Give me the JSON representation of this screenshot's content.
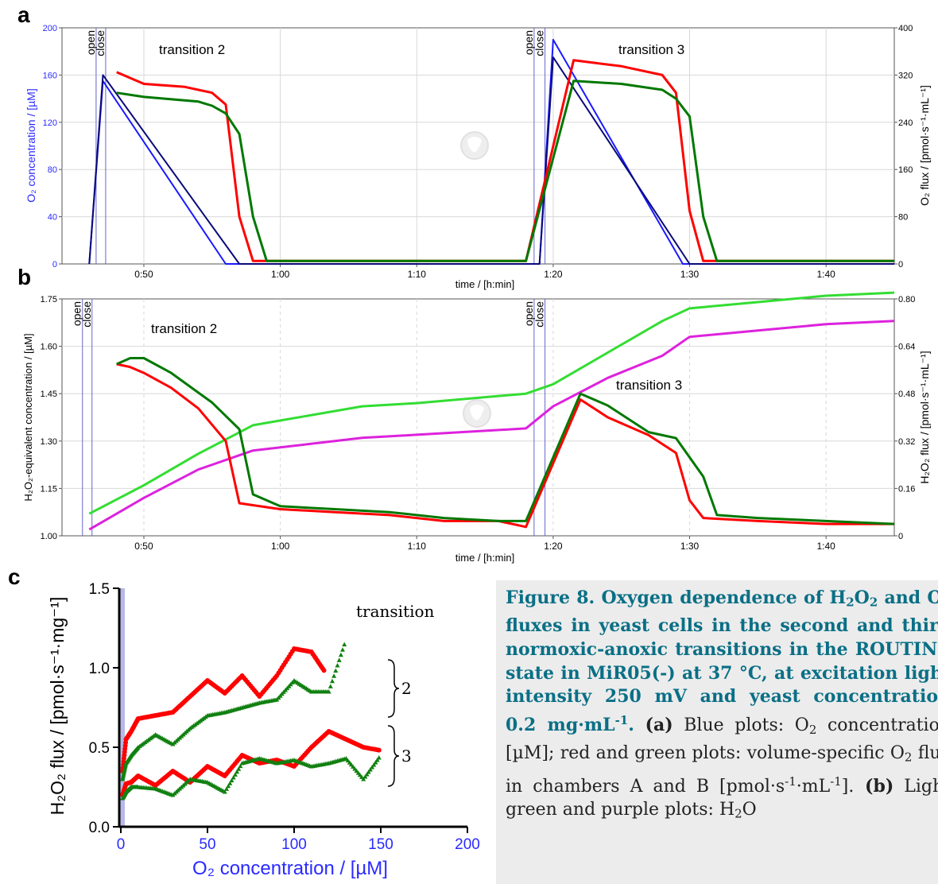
{
  "panels": {
    "a": {
      "letter": "a",
      "left_axis_label": "O₂ concentration / [µM]",
      "right_axis_label": "O₂ flux / [pmol·s⁻¹·mL⁻¹]",
      "x_label": "time / [h:min]",
      "x_ticks": [
        "0:50",
        "1:00",
        "1:10",
        "1:20",
        "1:30",
        "1:40"
      ],
      "left_ticks": [
        "0",
        "40",
        "80",
        "120",
        "160",
        "200"
      ],
      "right_ticks": [
        "0",
        "80",
        "160",
        "240",
        "320",
        "400"
      ],
      "events": [
        "open",
        "close",
        "open",
        "close"
      ],
      "annotations": [
        "transition 2",
        "transition 3"
      ],
      "colors": {
        "o2_conc_a": "#1a1aff",
        "o2_conc_b": "#0a0a7a",
        "flux_a": "#ff0000",
        "flux_b": "#007800"
      }
    },
    "b": {
      "letter": "b",
      "left_axis_label": "H₂O₂-equivalent concentration / [µM]",
      "right_axis_label": "H₂O₂ flux / [pmol·s⁻¹·mL⁻¹]",
      "x_label": "time / [h:min]",
      "x_ticks": [
        "0:50",
        "1:00",
        "1:10",
        "1:20",
        "1:30",
        "1:40"
      ],
      "left_ticks": [
        "1.00",
        "1.15",
        "1.30",
        "1.45",
        "1.60",
        "1.75"
      ],
      "right_ticks": [
        "0",
        "0.16",
        "0.32",
        "0.48",
        "0.64",
        "0.80"
      ],
      "events": [
        "open",
        "close",
        "open",
        "close"
      ],
      "annotations": [
        "transition 2",
        "transition 3"
      ],
      "colors": {
        "conc_a": "#33dd33",
        "conc_b": "#dd22dd",
        "flux_a": "#ff0000",
        "flux_b": "#007800"
      }
    },
    "c": {
      "letter": "c",
      "y_label": "H₂O₂ flux / [pmol·s⁻¹·mg⁻¹]",
      "x_label": "O₂ concentration / [µM]",
      "x_ticks": [
        "0",
        "50",
        "100",
        "150",
        "200"
      ],
      "y_ticks": [
        "0.0",
        "0.5",
        "1.0",
        "1.5"
      ],
      "legend_title": "transition",
      "brace_labels": [
        "2",
        "3"
      ],
      "colors": {
        "chamber_a": "#ff0000",
        "chamber_b": "#108010"
      }
    }
  },
  "chart_data": [
    {
      "type": "line",
      "panel": "a",
      "x_unit": "h:min",
      "xlim": [
        "0:44",
        "1:45"
      ],
      "ylim_left": [
        0,
        200
      ],
      "ylim_right": [
        0,
        400
      ],
      "series": [
        {
          "axis": "left",
          "x": [
            "0:46",
            "0:47",
            "0:56",
            "0:57",
            "1:18.5",
            "1:19",
            "1:20",
            "1:29.5",
            "1:31",
            "1:45"
          ],
          "values": [
            0,
            155,
            0,
            0,
            0,
            0,
            190,
            0,
            0,
            0
          ]
        },
        {
          "axis": "left",
          "x": [
            "0:46",
            "0:47",
            "0:57",
            "0:58",
            "1:18.5",
            "1:19",
            "1:20",
            "1:30",
            "1:31",
            "1:45"
          ],
          "values": [
            0,
            160,
            0,
            0,
            0,
            0,
            175,
            0,
            0,
            0
          ]
        },
        {
          "axis": "right",
          "x": [
            "0:48",
            "0:50",
            "0:53",
            "0:55",
            "0:56",
            "0:57",
            "0:58",
            "1:18",
            "1:21.5",
            "1:25",
            "1:28",
            "1:29",
            "1:30",
            "1:31",
            "1:45"
          ],
          "values": [
            325,
            305,
            300,
            290,
            270,
            80,
            5,
            5,
            345,
            335,
            320,
            290,
            90,
            5,
            5
          ]
        },
        {
          "axis": "right",
          "x": [
            "0:48",
            "0:50",
            "0:54",
            "0:55",
            "0:56",
            "0:57",
            "0:58",
            "0:59",
            "1:18",
            "1:21.5",
            "1:25",
            "1:28",
            "1:29",
            "1:30",
            "1:31",
            "1:32",
            "1:45"
          ],
          "values": [
            290,
            283,
            275,
            268,
            255,
            220,
            80,
            5,
            5,
            310,
            305,
            295,
            280,
            250,
            80,
            5,
            5
          ]
        }
      ]
    },
    {
      "type": "line",
      "panel": "b",
      "x_unit": "h:min",
      "xlim": [
        "0:44",
        "1:45"
      ],
      "ylim_left": [
        1.0,
        1.75
      ],
      "ylim_right": [
        0,
        0.8
      ],
      "series": [
        {
          "axis": "left",
          "x": [
            "0:46",
            "0:50",
            "0:54",
            "0:58",
            "1:02",
            "1:06",
            "1:10",
            "1:18",
            "1:20",
            "1:24",
            "1:28",
            "1:30",
            "1:35",
            "1:40",
            "1:45"
          ],
          "values": [
            1.07,
            1.16,
            1.26,
            1.35,
            1.38,
            1.41,
            1.42,
            1.45,
            1.48,
            1.58,
            1.68,
            1.72,
            1.74,
            1.76,
            1.77
          ]
        },
        {
          "axis": "left",
          "x": [
            "0:46",
            "0:50",
            "0:54",
            "0:58",
            "1:02",
            "1:06",
            "1:10",
            "1:18",
            "1:20",
            "1:24",
            "1:28",
            "1:30",
            "1:35",
            "1:40",
            "1:45"
          ],
          "values": [
            1.02,
            1.12,
            1.21,
            1.27,
            1.29,
            1.31,
            1.32,
            1.34,
            1.41,
            1.5,
            1.57,
            1.63,
            1.65,
            1.67,
            1.68
          ]
        },
        {
          "axis": "right",
          "x": [
            "0:48",
            "0:49",
            "0:50",
            "0:52",
            "0:54",
            "0:56",
            "0:57",
            "1:00",
            "1:04",
            "1:08",
            "1:12",
            "1:16",
            "1:18",
            "1:22",
            "1:24",
            "1:27",
            "1:29",
            "1:30",
            "1:31",
            "1:35",
            "1:40",
            "1:45"
          ],
          "values": [
            0.58,
            0.57,
            0.55,
            0.5,
            0.43,
            0.32,
            0.11,
            0.09,
            0.08,
            0.07,
            0.05,
            0.05,
            0.03,
            0.46,
            0.4,
            0.34,
            0.28,
            0.12,
            0.06,
            0.05,
            0.04,
            0.04
          ]
        },
        {
          "axis": "right",
          "x": [
            "0:48",
            "0:49",
            "0:50",
            "0:52",
            "0:55",
            "0:57",
            "0:58",
            "1:00",
            "1:04",
            "1:08",
            "1:12",
            "1:16",
            "1:18",
            "1:22",
            "1:24",
            "1:27",
            "1:29",
            "1:31",
            "1:32",
            "1:35",
            "1:40",
            "1:45"
          ],
          "values": [
            0.58,
            0.6,
            0.6,
            0.55,
            0.45,
            0.36,
            0.14,
            0.1,
            0.09,
            0.08,
            0.06,
            0.05,
            0.05,
            0.48,
            0.44,
            0.35,
            0.33,
            0.2,
            0.07,
            0.06,
            0.05,
            0.04
          ]
        }
      ]
    },
    {
      "type": "scatter",
      "panel": "c",
      "xlim": [
        0,
        200
      ],
      "ylim": [
        0,
        1.5
      ],
      "series": [
        {
          "x": [
            1,
            3,
            6,
            10,
            20,
            30,
            40,
            50,
            60,
            70,
            80,
            90,
            100,
            110,
            118
          ],
          "values": [
            0.35,
            0.55,
            0.6,
            0.68,
            0.7,
            0.72,
            0.82,
            0.92,
            0.84,
            0.95,
            0.82,
            0.95,
            1.12,
            1.1,
            0.97
          ]
        },
        {
          "x": [
            1,
            3,
            6,
            10,
            20,
            30,
            40,
            50,
            60,
            70,
            80,
            90,
            100,
            110,
            120,
            130
          ],
          "values": [
            0.3,
            0.4,
            0.45,
            0.5,
            0.58,
            0.52,
            0.62,
            0.7,
            0.72,
            0.75,
            0.78,
            0.8,
            0.92,
            0.85,
            0.85,
            1.18
          ]
        },
        {
          "x": [
            1,
            3,
            6,
            10,
            20,
            30,
            40,
            50,
            60,
            70,
            80,
            90,
            100,
            110,
            120,
            130,
            140,
            150
          ],
          "values": [
            0.2,
            0.27,
            0.28,
            0.32,
            0.26,
            0.35,
            0.28,
            0.38,
            0.32,
            0.45,
            0.4,
            0.42,
            0.38,
            0.5,
            0.6,
            0.55,
            0.5,
            0.48
          ]
        },
        {
          "x": [
            1,
            3,
            6,
            10,
            20,
            30,
            40,
            50,
            60,
            70,
            80,
            90,
            100,
            110,
            120,
            130,
            140,
            150
          ],
          "values": [
            0.18,
            0.22,
            0.25,
            0.25,
            0.24,
            0.2,
            0.3,
            0.28,
            0.22,
            0.4,
            0.43,
            0.4,
            0.42,
            0.38,
            0.4,
            0.43,
            0.3,
            0.45
          ]
        }
      ]
    }
  ],
  "caption": {
    "title_1": "Figure 8. Oxygen dependence of H",
    "title_h2o2_sub": "2",
    "title_2": "O",
    "title_o_sub": "2",
    "title_3": " and O",
    "title_o2_sub": "2",
    "title_4": " fluxes in yeast cells in the second and third normoxic-anoxic transitions in the ROUTINE state in MiR05(-) at 37 °C, at excitation light intensity 250 mV and yeast concentration 0.2 mg·mL",
    "title_sup": "-1",
    "title_end": ".",
    "part_a_label": "(a)",
    "part_a_1": " Blue plots: O",
    "part_a_sub1": "2",
    "part_a_2": " concentration [µM]; red and green plots: volume-specific O",
    "part_a_sub2": "2",
    "part_a_3": " flux in chambers A and B [pmol·s",
    "part_a_sup1": "-1",
    "part_a_4": "·mL",
    "part_a_sup2": "-1",
    "part_a_5": "].",
    "part_b_label": " (b)",
    "part_b_1": " Light green and purple plots: H",
    "part_b_sub1": "2",
    "part_b_2": "O"
  }
}
